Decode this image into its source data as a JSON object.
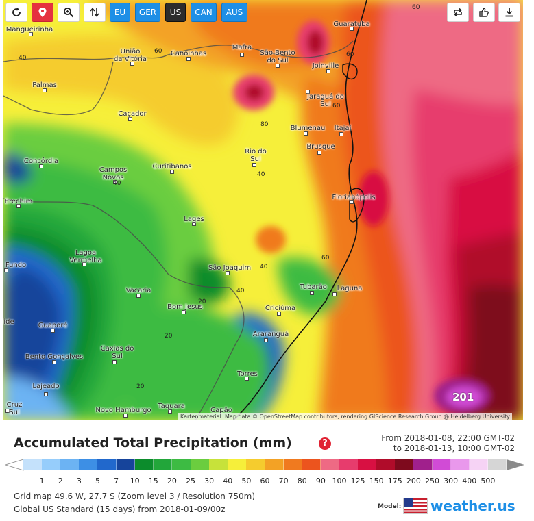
{
  "toolbar": {
    "regions": [
      {
        "label": "EU",
        "active": false
      },
      {
        "label": "GER",
        "active": false
      },
      {
        "label": "US",
        "active": true
      },
      {
        "label": "CAN",
        "active": false
      },
      {
        "label": "AUS",
        "active": false
      }
    ],
    "icons": {
      "refresh": "refresh-icon",
      "location": "location-pin-icon",
      "zoom": "zoom-icon",
      "sort": "sort-arrows-icon",
      "repeat": "repeat-icon",
      "like": "thumbs-up-icon",
      "download": "download-icon"
    }
  },
  "map": {
    "places": [
      {
        "name": "Mangueirinha"
      },
      {
        "name": "União\nda Vitória"
      },
      {
        "name": "Canoinhas"
      },
      {
        "name": "Mafra"
      },
      {
        "name": "São Bento\ndo Sul"
      },
      {
        "name": "Guaratuba"
      },
      {
        "name": "Joinville"
      },
      {
        "name": "Palmas"
      },
      {
        "name": "Jaraguá do\nSul"
      },
      {
        "name": "Caçador"
      },
      {
        "name": "Blumenau"
      },
      {
        "name": "Itajaí"
      },
      {
        "name": "Brusque"
      },
      {
        "name": "Rio do\nSul"
      },
      {
        "name": "Concórdia"
      },
      {
        "name": "Curitibanos"
      },
      {
        "name": "Campos\nNovos"
      },
      {
        "name": "Erechim"
      },
      {
        "name": "Florianópolis"
      },
      {
        "name": "Lages"
      },
      {
        "name": "Lagoa\nVermelha"
      },
      {
        "name": "Fundo"
      },
      {
        "name": "São Joaquim"
      },
      {
        "name": "Tubarão"
      },
      {
        "name": "Laguna"
      },
      {
        "name": "Vacaria"
      },
      {
        "name": "Bom Jesus"
      },
      {
        "name": "Criciúma"
      },
      {
        "name": "ide"
      },
      {
        "name": "Guaporé"
      },
      {
        "name": "Araranguá"
      },
      {
        "name": "Caxias do\nSul"
      },
      {
        "name": "Bento Gonçalves"
      },
      {
        "name": "Torres"
      },
      {
        "name": "Lajeado"
      },
      {
        "name": "Cruz\nSul"
      },
      {
        "name": "Novo Hamburgo"
      },
      {
        "name": "Taquara"
      },
      {
        "name": "Capão"
      }
    ],
    "contour_labels": [
      "60",
      "40",
      "60",
      "60",
      "80",
      "60",
      "40",
      "40",
      "40",
      "60",
      "40",
      "20",
      "20",
      "20"
    ],
    "max_value_label": "201",
    "attribution": "Kartenmaterial: Map data © OpenStreetMap contributors, rendering GIScience Research Group @ Heidelberg University"
  },
  "title": "Accumulated Total Precipitation (mm)",
  "help_label": "?",
  "period": {
    "from": "From 2018-01-08, 22:00 GMT-02",
    "to": "to 2018-01-13, 10:00 GMT-02"
  },
  "legend": {
    "values": [
      "1",
      "2",
      "3",
      "5",
      "7",
      "10",
      "15",
      "20",
      "25",
      "30",
      "40",
      "50",
      "60",
      "70",
      "80",
      "90",
      "100",
      "125",
      "150",
      "175",
      "200",
      "250",
      "300",
      "400",
      "500"
    ],
    "colors": [
      "#c4e1fb",
      "#96cdfb",
      "#6cb3f3",
      "#3d8fe5",
      "#2168cc",
      "#16449b",
      "#0c8c2c",
      "#22a63a",
      "#3dbb43",
      "#6bcd3f",
      "#c7e23a",
      "#f6ef3a",
      "#f5cc2e",
      "#f3a225",
      "#f07a1f",
      "#ec541e",
      "#ee6a84",
      "#e73c6d",
      "#d81042",
      "#b00c2a",
      "#7e0a1d",
      "#a0208c",
      "#d14bd6",
      "#e998ec",
      "#f6d3f5",
      "#d6d6d6"
    ]
  },
  "info": {
    "grid": "Grid map 49.6 W, 27.7 S (Zoom level 3 / Resolution 750m)",
    "model_run": "Global US Standard (15 days) from 2018-01-09/00z"
  },
  "model_label": "Model:",
  "brand": "weather.us"
}
